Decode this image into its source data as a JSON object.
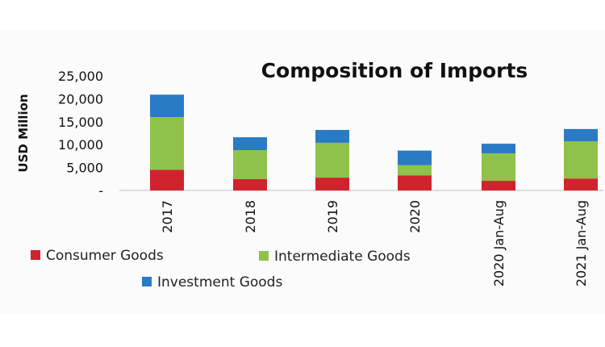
{
  "chart_data": {
    "type": "bar",
    "stacked": true,
    "title": "Composition of Imports",
    "xlabel": "",
    "ylabel": "USD Million",
    "ylim": [
      0,
      25000
    ],
    "yticks": [
      0,
      5000,
      10000,
      15000,
      20000,
      25000
    ],
    "ytick_labels": [
      "-",
      "5,000",
      "10,000",
      "15,000",
      "20,000",
      "25,000"
    ],
    "categories": [
      "2017",
      "2018",
      "2019",
      "2020",
      "2020 Jan-Aug",
      "2021 Jan-Aug"
    ],
    "series": [
      {
        "name": "Consumer Goods",
        "color": "#d0232d",
        "values": [
          4500,
          2500,
          2800,
          3300,
          2100,
          2600
        ]
      },
      {
        "name": "Intermediate Goods",
        "color": "#8fc24a",
        "values": [
          11500,
          6300,
          7600,
          2200,
          6000,
          8100
        ]
      },
      {
        "name": "Investment Goods",
        "color": "#2a7bc4",
        "values": [
          4900,
          2800,
          2800,
          3200,
          2100,
          2700
        ]
      }
    ],
    "legend_position": "bottom-left",
    "grid": false
  }
}
